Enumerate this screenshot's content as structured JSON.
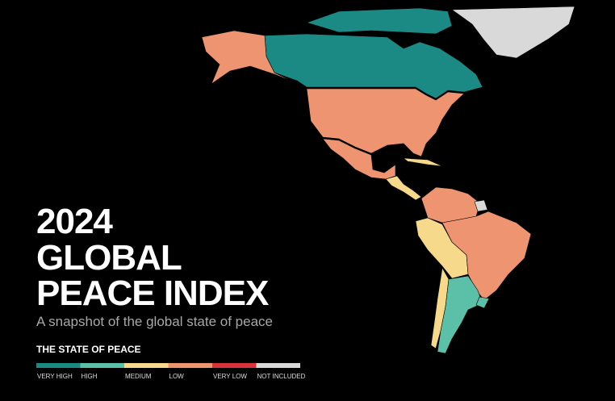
{
  "header": {
    "title_lines": [
      "2024",
      "GLOBAL",
      "PEACE INDEX"
    ],
    "subtitle": "A snapshot of the global state of peace"
  },
  "legend": {
    "title": "THE STATE OF PEACE",
    "items": [
      {
        "label": "VERY HIGH",
        "color": "#1b8a85"
      },
      {
        "label": "HIGH",
        "color": "#5cc0a8"
      },
      {
        "label": "MEDIUM",
        "color": "#f6d98b"
      },
      {
        "label": "LOW",
        "color": "#ee9470"
      },
      {
        "label": "VERY LOW",
        "color": "#d8323b"
      },
      {
        "label": "NOT INCLUDED",
        "color": "#d9d9d9"
      }
    ]
  }
}
